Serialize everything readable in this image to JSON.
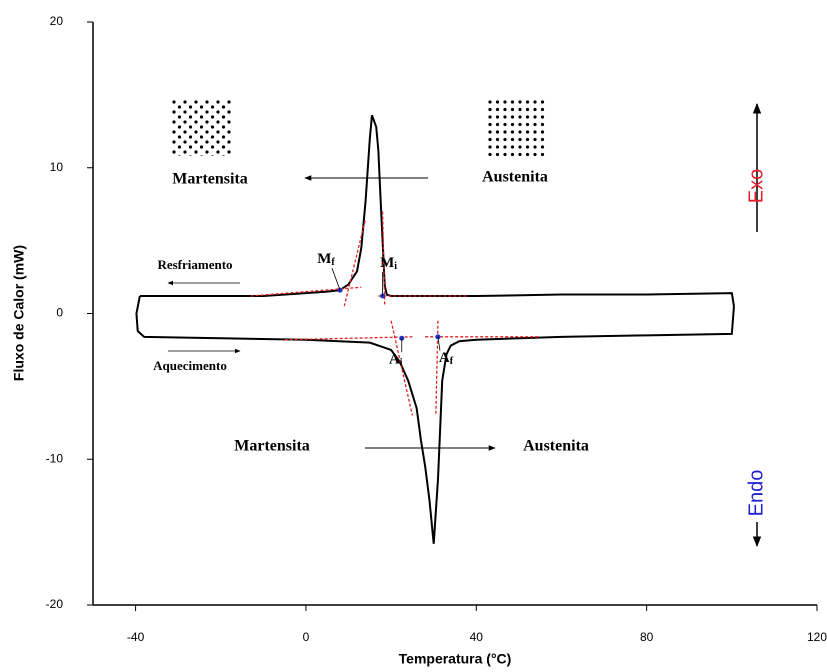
{
  "chart_data": {
    "type": "line",
    "xlabel": "Temperatura (°C)",
    "ylabel": "Fluxo de Calor (mW)",
    "xlim": [
      -50,
      120
    ],
    "ylim": [
      -20,
      20
    ],
    "xticks": [
      -40,
      0,
      40,
      80,
      120
    ],
    "yticks": [
      -20,
      -10,
      0,
      10,
      20
    ],
    "series": [
      {
        "color": "#000000",
        "x": [
          -39,
          -30,
          -20,
          -10,
          0,
          5,
          8,
          10,
          12,
          13,
          14,
          15,
          15.5,
          16.5,
          17,
          17.5,
          18,
          18.5,
          19,
          20,
          40,
          60,
          80,
          100,
          100.5
        ],
        "values": [
          1.2,
          1.2,
          1.2,
          1.2,
          1.4,
          1.5,
          1.6,
          2.0,
          2.9,
          4.5,
          7.7,
          12.0,
          13.6,
          12.8,
          11.2,
          8.0,
          5.0,
          1.9,
          1.3,
          1.2,
          1.2,
          1.3,
          1.3,
          1.4,
          0.5
        ]
      },
      {
        "color": "#000000",
        "x": [
          -39,
          -39.8,
          -39.5,
          -38,
          -20,
          0,
          15,
          20,
          22,
          24,
          26,
          27,
          28,
          29,
          30,
          31,
          32,
          33,
          34,
          36,
          40,
          60,
          80,
          100,
          100.5
        ],
        "values": [
          1.2,
          0,
          -1.2,
          -1.6,
          -1.7,
          -1.8,
          -2.0,
          -2.5,
          -3.3,
          -4.6,
          -6.5,
          -8.7,
          -10.5,
          -12.8,
          -15.8,
          -11.4,
          -4.6,
          -2.8,
          -2.2,
          -1.9,
          -1.8,
          -1.6,
          -1.5,
          -1.4,
          0.5
        ]
      }
    ],
    "tangents": [
      {
        "x": [
          -13,
          13
        ],
        "values": [
          1.2,
          1.8
        ]
      },
      {
        "x": [
          9,
          14
        ],
        "values": [
          0.5,
          6.5
        ]
      },
      {
        "x": [
          17,
          38
        ],
        "values": [
          1.2,
          1.2
        ]
      },
      {
        "x": [
          18,
          18.5
        ],
        "values": [
          7,
          0.5
        ]
      },
      {
        "x": [
          -5,
          25
        ],
        "values": [
          -1.8,
          -1.6
        ]
      },
      {
        "x": [
          20,
          25
        ],
        "values": [
          -0.5,
          -7
        ]
      },
      {
        "x": [
          28,
          55
        ],
        "values": [
          -1.6,
          -1.6
        ]
      },
      {
        "x": [
          31,
          30.5
        ],
        "values": [
          -0.5,
          -7
        ]
      }
    ],
    "points": {
      "x": [
        8,
        18,
        22.5,
        31
      ],
      "values": [
        1.6,
        1.2,
        -1.7,
        -1.6
      ]
    },
    "annotations": {
      "martensita_top": "Martensita",
      "austenita_top": "Austenita",
      "resfriamento": "Resfriamento",
      "aquecimento": "Aquecimento",
      "martensita_bottom": "Martensita",
      "austenita_bottom": "Austenita",
      "exo": "Exo",
      "endo": "Endo"
    },
    "point_labels": [
      {
        "main": "M",
        "sub": "f"
      },
      {
        "main": "M",
        "sub": "i"
      },
      {
        "main": "A",
        "sub": "i"
      },
      {
        "main": "A",
        "sub": "f"
      }
    ]
  }
}
